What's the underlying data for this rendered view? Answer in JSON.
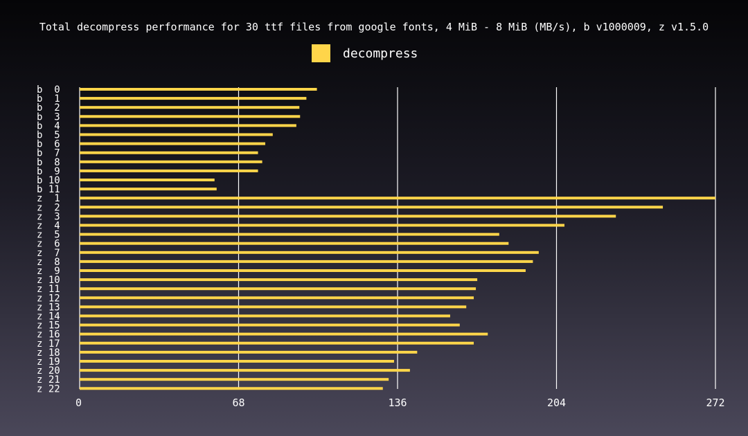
{
  "chart_data": {
    "type": "bar",
    "orientation": "horizontal",
    "title": "Total decompress performance for 30 ttf files from google fonts, 4 MiB - 8 MiB (MB/s), b v1000009, z v1.5.0",
    "xlabel": "",
    "ylabel": "",
    "xlim": [
      0,
      272
    ],
    "xticks": [
      0,
      68,
      136,
      204,
      272
    ],
    "grid": true,
    "legend": "top-center",
    "colors": {
      "bar": "#ffd54a"
    },
    "categories": [
      "b  0",
      "b  1",
      "b  2",
      "b  3",
      "b  4",
      "b  5",
      "b  6",
      "b  7",
      "b  8",
      "b  9",
      "b 10",
      "b 11",
      "z  1",
      "z  2",
      "z  3",
      "z  4",
      "z  5",
      "z  6",
      "z  7",
      "z  8",
      "z  9",
      "z 10",
      "z 11",
      "z 12",
      "z 13",
      "z 14",
      "z 15",
      "z 16",
      "z 17",
      "z 18",
      "z 19",
      "z 20",
      "z 21",
      "z 22"
    ],
    "series": [
      {
        "name": "decompress",
        "values": [
          101.5,
          97,
          94,
          94.3,
          92.7,
          82.6,
          79.4,
          76.3,
          78.1,
          76.3,
          57.7,
          58.6,
          272,
          249.5,
          229.4,
          207.4,
          179.5,
          183.5,
          196.4,
          193.9,
          190.8,
          170.1,
          169.5,
          168.6,
          165.4,
          158.5,
          162.6,
          174.6,
          168.6,
          144.4,
          134.5,
          141.3,
          132.2,
          129.7
        ]
      }
    ]
  }
}
